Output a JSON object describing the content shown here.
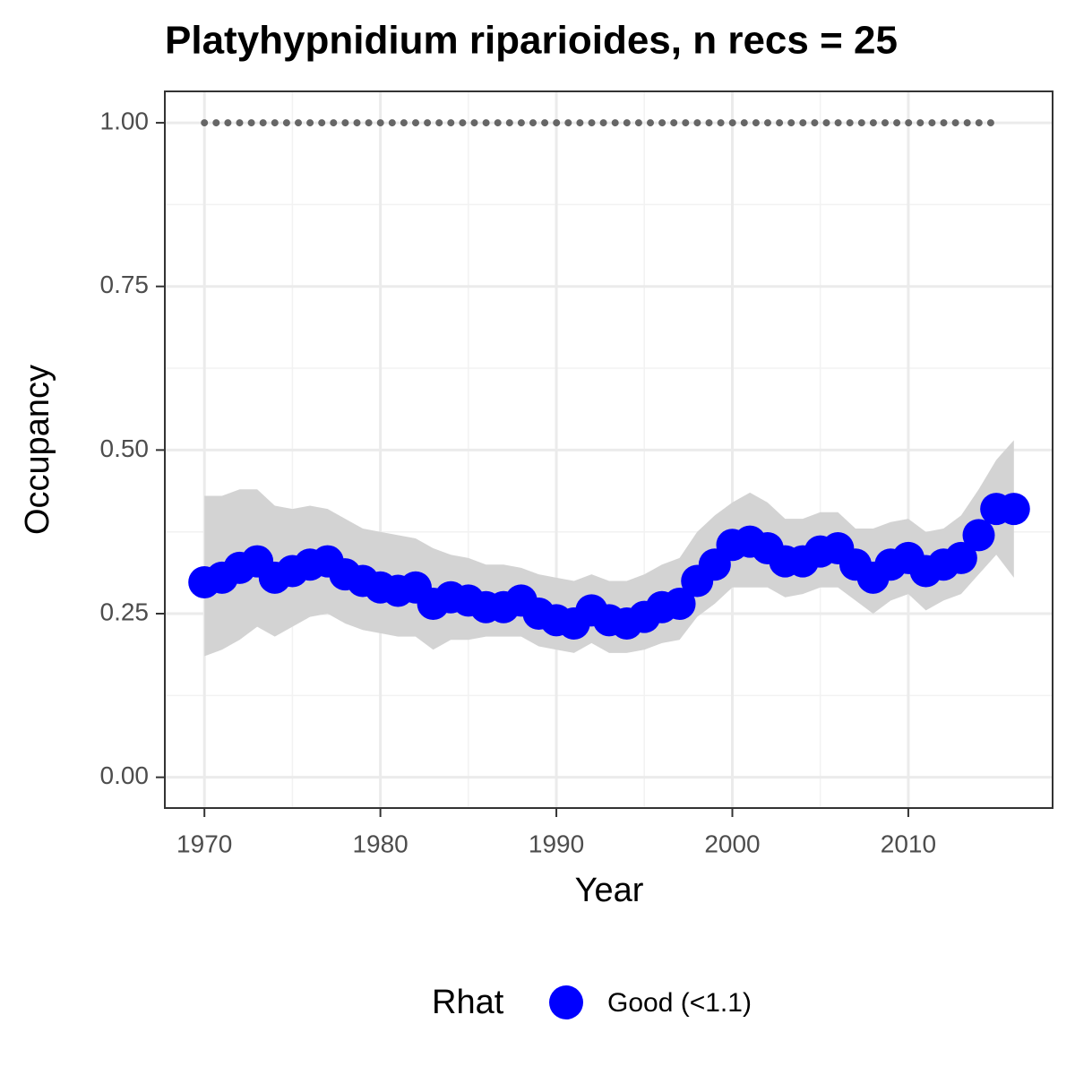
{
  "chart_data": {
    "type": "line",
    "title": "Platyhypnidium riparioides, n recs = 25",
    "x_label": "Year",
    "y_label": "Occupancy",
    "x": [
      1970,
      1971,
      1972,
      1973,
      1974,
      1975,
      1976,
      1977,
      1978,
      1979,
      1980,
      1981,
      1982,
      1983,
      1984,
      1985,
      1986,
      1987,
      1988,
      1989,
      1990,
      1991,
      1992,
      1993,
      1994,
      1995,
      1996,
      1997,
      1998,
      1999,
      2000,
      2001,
      2002,
      2003,
      2004,
      2005,
      2006,
      2007,
      2008,
      2009,
      2010,
      2011,
      2012,
      2013,
      2014,
      2015,
      2016
    ],
    "series": [
      {
        "name": "Good (<1.1)",
        "color": "#0000ff",
        "values": [
          0.298,
          0.305,
          0.32,
          0.33,
          0.305,
          0.315,
          0.325,
          0.33,
          0.31,
          0.3,
          0.29,
          0.285,
          0.29,
          0.265,
          0.275,
          0.27,
          0.26,
          0.26,
          0.27,
          0.25,
          0.24,
          0.235,
          0.255,
          0.24,
          0.235,
          0.245,
          0.26,
          0.265,
          0.3,
          0.325,
          0.355,
          0.36,
          0.35,
          0.33,
          0.33,
          0.345,
          0.35,
          0.325,
          0.305,
          0.325,
          0.335,
          0.315,
          0.325,
          0.335,
          0.37,
          0.41,
          0.41
        ],
        "upper": [
          0.43,
          0.43,
          0.44,
          0.44,
          0.415,
          0.41,
          0.415,
          0.41,
          0.395,
          0.38,
          0.375,
          0.37,
          0.365,
          0.35,
          0.34,
          0.335,
          0.325,
          0.325,
          0.32,
          0.31,
          0.305,
          0.3,
          0.31,
          0.3,
          0.3,
          0.31,
          0.325,
          0.335,
          0.375,
          0.4,
          0.42,
          0.435,
          0.42,
          0.395,
          0.395,
          0.405,
          0.405,
          0.38,
          0.38,
          0.39,
          0.395,
          0.375,
          0.38,
          0.4,
          0.44,
          0.485,
          0.515
        ],
        "lower": [
          0.185,
          0.195,
          0.21,
          0.23,
          0.215,
          0.23,
          0.245,
          0.25,
          0.235,
          0.225,
          0.22,
          0.215,
          0.215,
          0.195,
          0.21,
          0.21,
          0.215,
          0.215,
          0.215,
          0.2,
          0.195,
          0.19,
          0.205,
          0.19,
          0.19,
          0.195,
          0.205,
          0.21,
          0.245,
          0.265,
          0.29,
          0.29,
          0.29,
          0.275,
          0.28,
          0.29,
          0.29,
          0.27,
          0.25,
          0.27,
          0.28,
          0.255,
          0.27,
          0.28,
          0.31,
          0.34,
          0.305
        ],
        "band_color": "#d3d3d3"
      }
    ],
    "dotted_line": {
      "x": [
        1970,
        2015
      ],
      "values": [
        1,
        1
      ],
      "color": "#666666"
    },
    "legend_title": "Rhat",
    "legend_position": "bottom",
    "xlim": [
      1967.75,
      2018.2
    ],
    "xticks": [
      1970,
      1980,
      1990,
      2000,
      2010
    ],
    "ylim": [
      -0.047,
      1.048
    ],
    "yticks": [
      {
        "value": 0,
        "label": "0.00"
      },
      {
        "value": 0.25,
        "label": "0.25"
      },
      {
        "value": 0.5,
        "label": "0.50"
      },
      {
        "value": 0.75,
        "label": "0.75"
      },
      {
        "value": 1,
        "label": "1.00"
      }
    ],
    "grid": true
  }
}
